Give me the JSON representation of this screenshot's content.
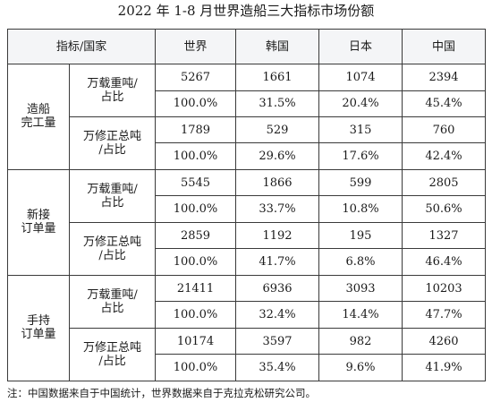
{
  "title": "2022 年 1-8 月世界造船三大指标市场份额",
  "header": {
    "corner": "指标/国家",
    "columns": [
      "世界",
      "韩国",
      "日本",
      "中国"
    ]
  },
  "groups": [
    {
      "label": "造船\n完工量",
      "subs": [
        {
          "label": "万载重吨/\n占比",
          "rows": [
            [
              "5267",
              "1661",
              "1074",
              "2394"
            ],
            [
              "100.0%",
              "31.5%",
              "20.4%",
              "45.4%"
            ]
          ]
        },
        {
          "label": "万修正总吨\n/占比",
          "rows": [
            [
              "1789",
              "529",
              "315",
              "760"
            ],
            [
              "100.0%",
              "29.6%",
              "17.6%",
              "42.4%"
            ]
          ]
        }
      ]
    },
    {
      "label": "新接\n订单量",
      "subs": [
        {
          "label": "万载重吨/\n占比",
          "rows": [
            [
              "5545",
              "1866",
              "599",
              "2805"
            ],
            [
              "100.0%",
              "33.7%",
              "10.8%",
              "50.6%"
            ]
          ]
        },
        {
          "label": "万修正总吨\n/占比",
          "rows": [
            [
              "2859",
              "1192",
              "195",
              "1327"
            ],
            [
              "100.0%",
              "41.7%",
              "6.8%",
              "46.4%"
            ]
          ]
        }
      ]
    },
    {
      "label": "手持\n订单量",
      "subs": [
        {
          "label": "万载重吨/\n占比",
          "rows": [
            [
              "21411",
              "6936",
              "3093",
              "10203"
            ],
            [
              "100.0%",
              "32.4%",
              "14.4%",
              "47.7%"
            ]
          ]
        },
        {
          "label": "万修正总吨\n/占比",
          "rows": [
            [
              "10174",
              "3597",
              "982",
              "4260"
            ],
            [
              "100.0%",
              "35.4%",
              "9.6%",
              "41.9%"
            ]
          ]
        }
      ]
    }
  ],
  "note": "注：中国数据来自于中国统计，世界数据来自于克拉克松研究公司。"
}
